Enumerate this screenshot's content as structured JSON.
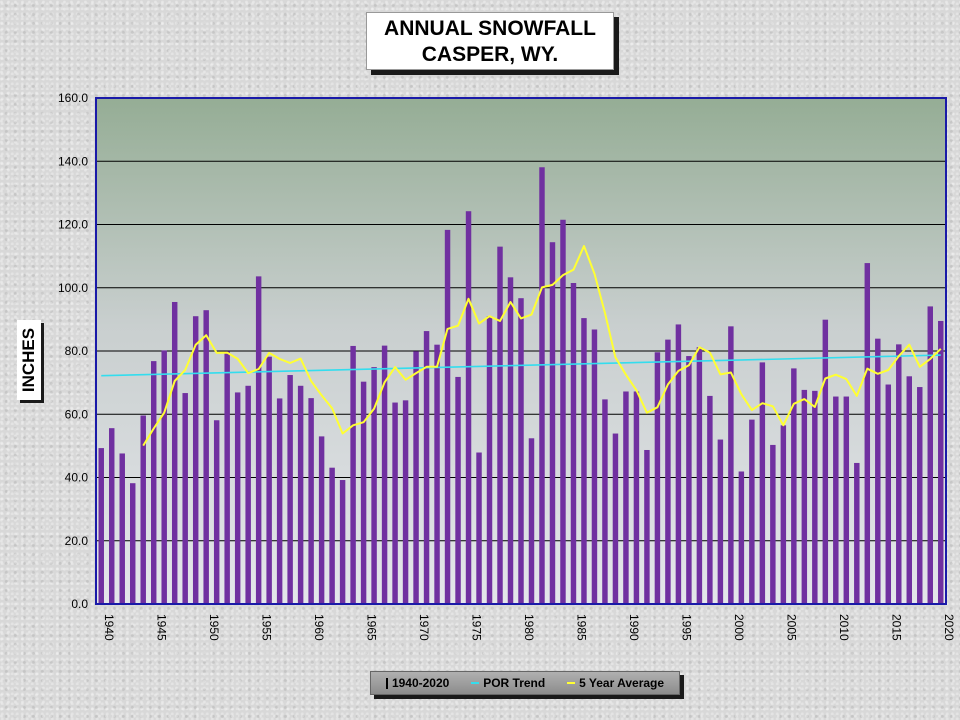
{
  "title_line1": "ANNUAL SNOWFALL",
  "title_line2": "CASPER, WY.",
  "colors": {
    "bar": "#7030a0",
    "trend": "#33ddee",
    "average": "#ffff33",
    "frame": "#1a1aa8"
  },
  "chart_data": {
    "type": "bar",
    "ylabel": "INCHES",
    "ylim": [
      0,
      160
    ],
    "yticks": [
      "0.0",
      "20.0",
      "40.0",
      "60.0",
      "80.0",
      "100.0",
      "120.0",
      "140.0",
      "160.0"
    ],
    "x_tick_labels": [
      "1940",
      "1945",
      "1950",
      "1955",
      "1960",
      "1965",
      "1970",
      "1975",
      "1980",
      "1985",
      "1990",
      "1995",
      "2000",
      "2005",
      "2010",
      "2015",
      "2020"
    ],
    "grid": true,
    "legend_position": "bottom",
    "start_year": 1940,
    "series": [
      {
        "name": "1940-2020",
        "type": "bar",
        "values": [
          49.3,
          55.6,
          47.6,
          38.2,
          59.6,
          76.8,
          80.2,
          95.5,
          66.7,
          91.0,
          92.9,
          58.1,
          79.9,
          66.9,
          69.0,
          103.6,
          78.2,
          65.0,
          72.4,
          69.0,
          65.1,
          53.0,
          43.1,
          39.2,
          81.6,
          70.3,
          74.9,
          81.7,
          63.7,
          64.4,
          79.9,
          86.3,
          82.0,
          118.3,
          71.8,
          124.2,
          47.9,
          91.0,
          113.0,
          103.3,
          96.7,
          52.4,
          138.1,
          114.4,
          121.5,
          101.5,
          90.4,
          86.8,
          64.7,
          53.9,
          67.2,
          67.2,
          48.7,
          79.6,
          83.6,
          88.4,
          78.4,
          81.2,
          65.8,
          52.0,
          87.8,
          41.9,
          58.3,
          76.4,
          50.3,
          56.5,
          74.5,
          67.7,
          67.4,
          89.9,
          65.6,
          65.6,
          44.6,
          107.8,
          83.9,
          69.4,
          82.1,
          72.0,
          68.6,
          94.1,
          89.5
        ]
      },
      {
        "name": "POR Trend",
        "type": "line",
        "start": 72.2,
        "end": 78.7
      },
      {
        "name": "5 Year Average",
        "type": "line",
        "values": [
          null,
          null,
          null,
          null,
          50.1,
          55.5,
          60.5,
          70.5,
          74.0,
          82.0,
          85.0,
          79.4,
          79.5,
          77.5,
          73.0,
          74.3,
          79.4,
          77.5,
          76.2,
          77.6,
          70.5,
          66.0,
          61.9,
          53.9,
          56.5,
          57.5,
          61.8,
          70.1,
          74.9,
          70.9,
          73.0,
          75.0,
          75.0,
          87.0,
          88.0,
          96.5,
          88.7,
          91.0,
          89.5,
          95.5,
          90.3,
          91.5,
          100.1,
          100.9,
          104.0,
          105.7,
          113.2,
          104.4,
          92.0,
          78.0,
          72.5,
          67.6,
          60.5,
          62.2,
          69.4,
          73.7,
          75.5,
          81.2,
          79.5,
          72.6,
          73.2,
          66.3,
          61.3,
          63.5,
          62.5,
          56.5,
          63.3,
          64.8,
          62.3,
          71.3,
          72.5,
          71.1,
          65.8,
          74.4,
          72.8,
          74.0,
          78.4,
          82.0,
          75.0,
          77.5,
          80.7
        ]
      }
    ]
  }
}
